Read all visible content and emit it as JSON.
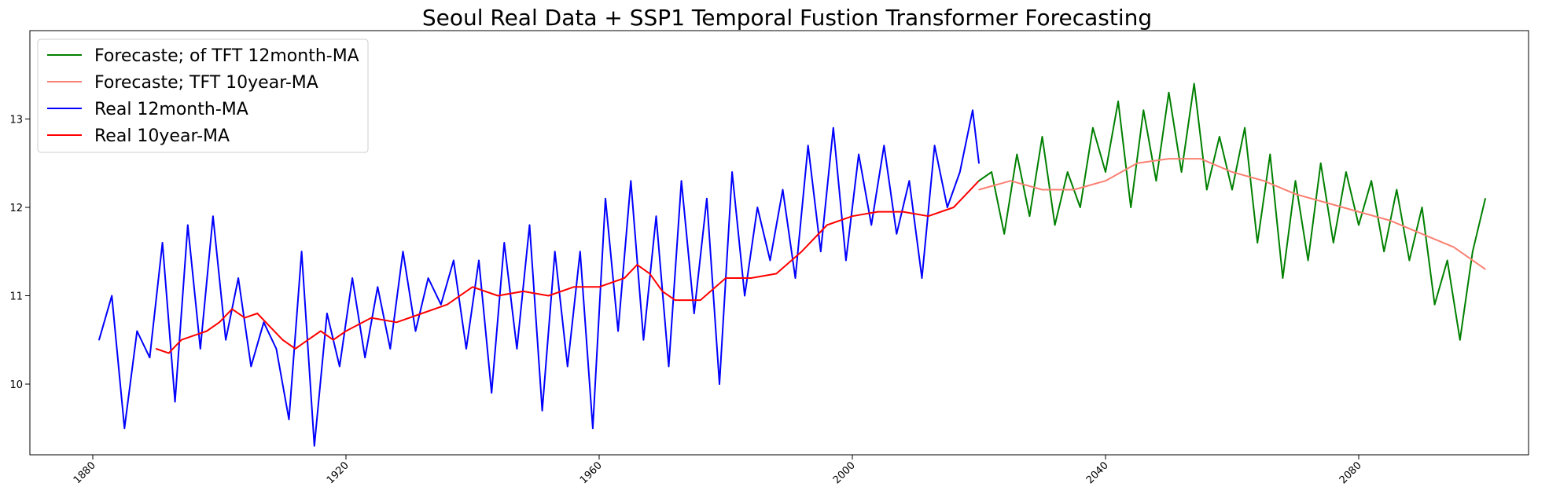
{
  "chart_data": {
    "type": "line",
    "title": "Seoul Real Data + SSP1 Temporal Fustion Transformer Forecasting",
    "xlabel": "",
    "ylabel": "",
    "xlim": [
      1880,
      2100
    ],
    "ylim": [
      9.2,
      14.0
    ],
    "xticks": [
      {
        "value": 1880,
        "label": "1880"
      },
      {
        "value": 1920,
        "label": "1920"
      },
      {
        "value": 1960,
        "label": "1960"
      },
      {
        "value": 2000,
        "label": "2000"
      },
      {
        "value": 2040,
        "label": "2040"
      },
      {
        "value": 2080,
        "label": "2080"
      }
    ],
    "yticks": [
      {
        "value": 10,
        "label": "10"
      },
      {
        "value": 11,
        "label": "11"
      },
      {
        "value": 12,
        "label": "12"
      },
      {
        "value": 13,
        "label": "13"
      }
    ],
    "legend_position": "top-left",
    "grid": false,
    "series": [
      {
        "name": "Forecaste; of TFT 12month-MA",
        "color": "#008000",
        "x": [
          2020,
          2022,
          2024,
          2026,
          2028,
          2030,
          2032,
          2034,
          2036,
          2038,
          2040,
          2042,
          2044,
          2046,
          2048,
          2050,
          2052,
          2054,
          2056,
          2058,
          2060,
          2062,
          2064,
          2066,
          2068,
          2070,
          2072,
          2074,
          2076,
          2078,
          2080,
          2082,
          2084,
          2086,
          2088,
          2090,
          2092,
          2094,
          2096,
          2098,
          2100
        ],
        "values": [
          12.3,
          12.4,
          11.7,
          12.6,
          11.9,
          12.8,
          11.8,
          12.4,
          12.0,
          12.9,
          12.4,
          13.2,
          12.0,
          13.1,
          12.3,
          13.3,
          12.4,
          13.4,
          12.2,
          12.8,
          12.2,
          12.9,
          11.6,
          12.6,
          11.2,
          12.3,
          11.4,
          12.5,
          11.6,
          12.4,
          11.8,
          12.3,
          11.5,
          12.2,
          11.4,
          12.0,
          10.9,
          11.4,
          10.5,
          11.5,
          12.1
        ]
      },
      {
        "name": "Forecaste; TFT 10year-MA",
        "color": "#fa8072",
        "x": [
          2020,
          2025,
          2030,
          2035,
          2040,
          2045,
          2050,
          2055,
          2060,
          2065,
          2070,
          2075,
          2080,
          2085,
          2090,
          2095,
          2100
        ],
        "values": [
          12.2,
          12.3,
          12.2,
          12.2,
          12.3,
          12.5,
          12.55,
          12.55,
          12.4,
          12.3,
          12.15,
          12.05,
          11.95,
          11.85,
          11.7,
          11.55,
          11.3
        ]
      },
      {
        "name": "Real 12month-MA",
        "color": "#0000ff",
        "x": [
          1881,
          1883,
          1885,
          1887,
          1889,
          1891,
          1893,
          1895,
          1897,
          1899,
          1901,
          1903,
          1905,
          1907,
          1909,
          1911,
          1913,
          1915,
          1917,
          1919,
          1921,
          1923,
          1925,
          1927,
          1929,
          1931,
          1933,
          1935,
          1937,
          1939,
          1941,
          1943,
          1945,
          1947,
          1949,
          1951,
          1953,
          1955,
          1957,
          1959,
          1961,
          1963,
          1965,
          1967,
          1969,
          1971,
          1973,
          1975,
          1977,
          1979,
          1981,
          1983,
          1985,
          1987,
          1989,
          1991,
          1993,
          1995,
          1997,
          1999,
          2001,
          2003,
          2005,
          2007,
          2009,
          2011,
          2013,
          2015,
          2017,
          2019,
          2020
        ],
        "values": [
          10.5,
          11.0,
          9.5,
          10.6,
          10.3,
          11.6,
          9.8,
          11.8,
          10.4,
          11.9,
          10.5,
          11.2,
          10.2,
          10.7,
          10.4,
          9.6,
          11.5,
          9.3,
          10.8,
          10.2,
          11.2,
          10.3,
          11.1,
          10.4,
          11.5,
          10.6,
          11.2,
          10.9,
          11.4,
          10.4,
          11.4,
          9.9,
          11.6,
          10.4,
          11.8,
          9.7,
          11.5,
          10.2,
          11.5,
          9.5,
          12.1,
          10.6,
          12.3,
          10.5,
          11.9,
          10.2,
          12.3,
          10.8,
          12.1,
          10.0,
          12.4,
          11.0,
          12.0,
          11.4,
          12.2,
          11.2,
          12.7,
          11.5,
          12.9,
          11.4,
          12.6,
          11.8,
          12.7,
          11.7,
          12.3,
          11.2,
          12.7,
          12.0,
          12.4,
          13.1,
          12.5
        ]
      },
      {
        "name": "Real 10year-MA",
        "color": "#ff0000",
        "x": [
          1890,
          1892,
          1894,
          1896,
          1898,
          1900,
          1902,
          1904,
          1906,
          1908,
          1910,
          1912,
          1914,
          1916,
          1918,
          1920,
          1924,
          1928,
          1932,
          1936,
          1940,
          1944,
          1948,
          1952,
          1956,
          1960,
          1964,
          1966,
          1968,
          1970,
          1972,
          1976,
          1980,
          1984,
          1988,
          1992,
          1996,
          2000,
          2004,
          2008,
          2012,
          2016,
          2020
        ],
        "values": [
          10.4,
          10.35,
          10.5,
          10.55,
          10.6,
          10.7,
          10.85,
          10.75,
          10.8,
          10.65,
          10.5,
          10.4,
          10.5,
          10.6,
          10.5,
          10.6,
          10.75,
          10.7,
          10.8,
          10.9,
          11.1,
          11.0,
          11.05,
          11.0,
          11.1,
          11.1,
          11.2,
          11.35,
          11.25,
          11.05,
          10.95,
          10.95,
          11.2,
          11.2,
          11.25,
          11.5,
          11.8,
          11.9,
          11.95,
          11.95,
          11.9,
          12.0,
          12.3
        ]
      }
    ]
  }
}
